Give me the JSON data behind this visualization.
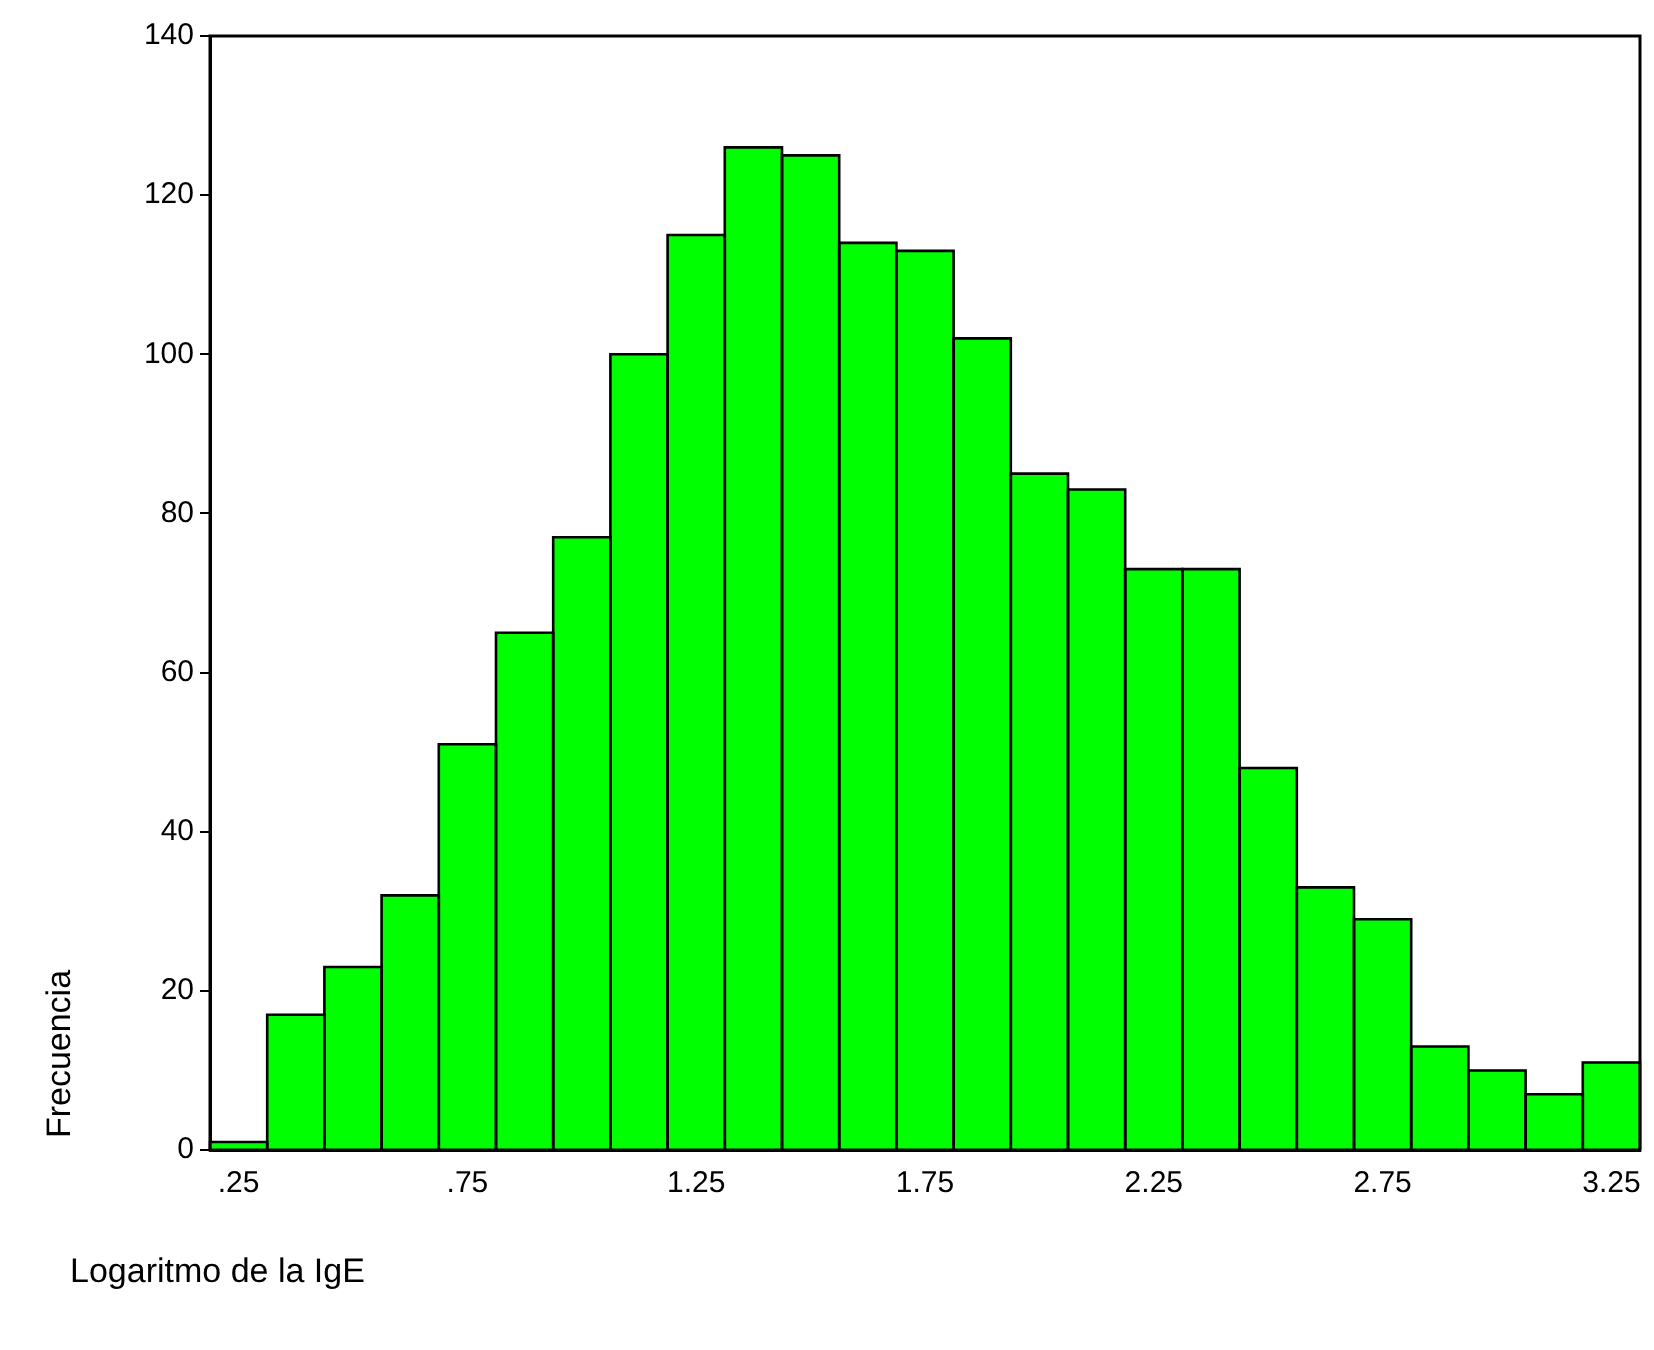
{
  "chart_data": {
    "type": "histogram",
    "xlabel": "Logaritmo de la IgE",
    "ylabel": "Frecuencia",
    "bins": [
      0.1875,
      0.3125,
      0.4375,
      0.5625,
      0.6875,
      0.8125,
      0.9375,
      1.0625,
      1.1875,
      1.3125,
      1.4375,
      1.5625,
      1.6875,
      1.8125,
      1.9375,
      2.0625,
      2.1875,
      2.3125,
      2.4375,
      2.5625,
      2.6875,
      2.8125,
      2.9375,
      3.0625,
      3.1875,
      3.3125
    ],
    "values": [
      1,
      17,
      23,
      32,
      51,
      65,
      77,
      100,
      115,
      126,
      125,
      114,
      113,
      102,
      85,
      83,
      73,
      73,
      48,
      33,
      29,
      13,
      10,
      7,
      11
    ],
    "color": "#00ff00",
    "xlim": [
      0.1875,
      3.3125
    ],
    "xticks": [
      {
        "value": 0.25,
        "label": ".25"
      },
      {
        "value": 0.75,
        "label": ".75"
      },
      1.25,
      1.75,
      2.25,
      2.75,
      3.25
    ],
    "ylim": [
      0,
      140
    ],
    "yticks": [
      0,
      20,
      40,
      60,
      80,
      100,
      120,
      140
    ],
    "grid": false,
    "legend": false
  }
}
